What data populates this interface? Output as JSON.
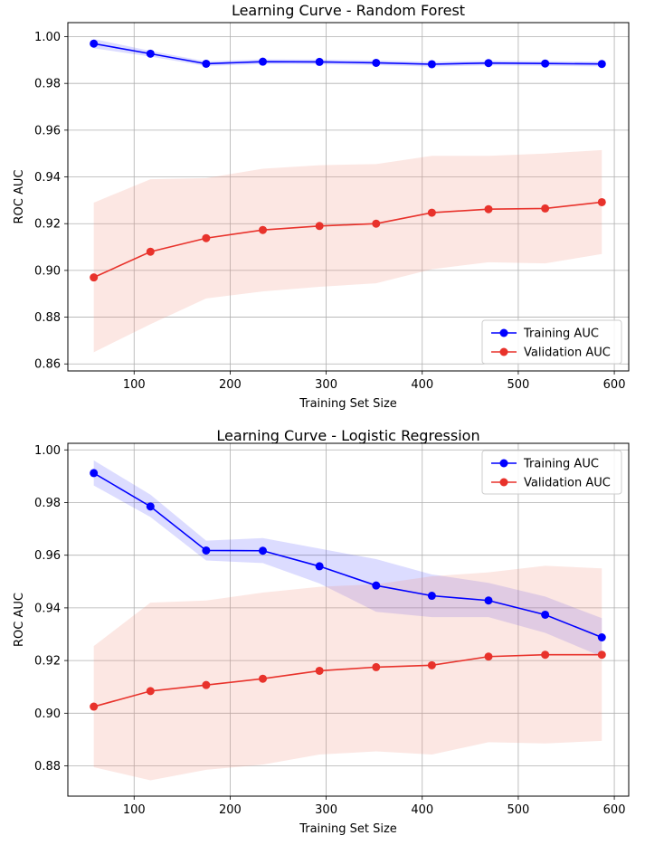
{
  "chart_data": [
    {
      "type": "line",
      "title": "Learning Curve - Random Forest",
      "xlabel": "Training Set Size",
      "ylabel": "ROC AUC",
      "xlim": [
        31,
        615
      ],
      "ylim": [
        0.857,
        1.006
      ],
      "xticks": [
        100,
        200,
        300,
        400,
        500,
        600
      ],
      "xtick_labels": [
        "100",
        "200",
        "300",
        "400",
        "500",
        "600"
      ],
      "yticks": [
        0.86,
        0.88,
        0.9,
        0.92,
        0.94,
        0.96,
        0.98,
        1.0
      ],
      "ytick_labels": [
        "0.86",
        "0.88",
        "0.90",
        "0.92",
        "0.94",
        "0.96",
        "0.98",
        "1.00"
      ],
      "grid": true,
      "legend_position": "lower-right",
      "x": [
        58,
        117,
        175,
        234,
        293,
        352,
        410,
        469,
        528,
        587
      ],
      "series": [
        {
          "name": "Training AUC",
          "color": "#0000ff",
          "values": [
            0.997,
            0.9927,
            0.9884,
            0.9893,
            0.9892,
            0.9888,
            0.9882,
            0.9887,
            0.9885,
            0.9883
          ],
          "band_lower": [
            0.995,
            0.9915,
            0.9874,
            0.9883,
            0.9882,
            0.9878,
            0.9872,
            0.9877,
            0.9875,
            0.9873
          ],
          "band_upper": [
            0.999,
            0.9939,
            0.9894,
            0.9903,
            0.9902,
            0.9898,
            0.9892,
            0.9897,
            0.9895,
            0.9893
          ]
        },
        {
          "name": "Validation AUC",
          "color": "#e8322b",
          "values": [
            0.897,
            0.908,
            0.9138,
            0.9173,
            0.919,
            0.92,
            0.9247,
            0.9262,
            0.9265,
            0.9292
          ],
          "band_lower": [
            0.865,
            0.877,
            0.888,
            0.891,
            0.893,
            0.8945,
            0.9005,
            0.9035,
            0.903,
            0.907
          ],
          "band_upper": [
            0.929,
            0.939,
            0.9395,
            0.9435,
            0.945,
            0.9455,
            0.949,
            0.949,
            0.95,
            0.9515
          ]
        }
      ]
    },
    {
      "type": "line",
      "title": "Learning Curve - Logistic Regression",
      "xlabel": "Training Set Size",
      "ylabel": "ROC AUC",
      "xlim": [
        31,
        615
      ],
      "ylim": [
        0.8685,
        1.0025
      ],
      "xticks": [
        100,
        200,
        300,
        400,
        500,
        600
      ],
      "xtick_labels": [
        "100",
        "200",
        "300",
        "400",
        "500",
        "600"
      ],
      "yticks": [
        0.88,
        0.9,
        0.92,
        0.94,
        0.96,
        0.98,
        1.0
      ],
      "ytick_labels": [
        "0.88",
        "0.90",
        "0.92",
        "0.94",
        "0.96",
        "0.98",
        "1.00"
      ],
      "grid": true,
      "legend_position": "upper-right",
      "x": [
        58,
        117,
        175,
        234,
        293,
        352,
        410,
        469,
        528,
        587
      ],
      "series": [
        {
          "name": "Training AUC",
          "color": "#0000ff",
          "values": [
            0.9912,
            0.9785,
            0.9618,
            0.9617,
            0.9558,
            0.9485,
            0.9446,
            0.9428,
            0.9374,
            0.9288
          ],
          "band_lower": [
            0.9865,
            0.9745,
            0.958,
            0.957,
            0.9493,
            0.9385,
            0.9365,
            0.9365,
            0.9305,
            0.9215
          ],
          "band_upper": [
            0.996,
            0.983,
            0.9655,
            0.9665,
            0.9625,
            0.9585,
            0.9527,
            0.9495,
            0.9443,
            0.9361
          ]
        },
        {
          "name": "Validation AUC",
          "color": "#e8322b",
          "values": [
            0.9025,
            0.9084,
            0.9107,
            0.9131,
            0.9161,
            0.9175,
            0.9182,
            0.9215,
            0.9222,
            0.9222
          ],
          "band_lower": [
            0.8795,
            0.8745,
            0.8785,
            0.8805,
            0.8843,
            0.8855,
            0.8843,
            0.889,
            0.8885,
            0.8895
          ],
          "band_upper": [
            0.9255,
            0.942,
            0.9428,
            0.9458,
            0.948,
            0.949,
            0.952,
            0.9535,
            0.956,
            0.955
          ]
        }
      ]
    }
  ]
}
